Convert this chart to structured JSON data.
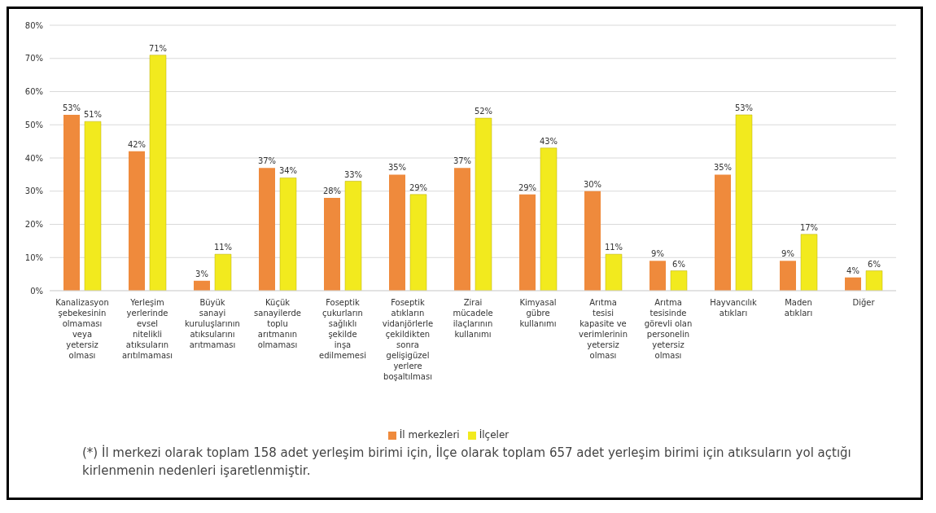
{
  "chart_data": {
    "type": "bar",
    "categories": [
      "Kanalizasyon\nşebekesinin\nolmaması\nveya\nyetersiz\nolması",
      "Yerleşim\nyerlerinde\nevsel\nnitelikli\natıksuların\narıtılmaması",
      "Büyük\nsanayi\nkuruluşlarının\natıksularını\narıtmaması",
      "Küçük\nsanayilerde\ntoplu\narıtmanın\nolmaması",
      "Foseptik\nçukurların\nsağlıklı\nşekilde\ninşa\nedilmemesi",
      "Foseptik\natıkların\nvidanjörlerle\nçekildikten\nsonra\ngelişigüzel\nyerlere\nboşaltılması",
      "Zirai\nmücadele\nilaçlarının\nkullanımı",
      "Kimyasal\ngübre\nkullanımı",
      "Arıtma\ntesisi\nkapasite ve\nverimlerinin\nyetersiz\nolması",
      "Arıtma\ntesisinde\ngörevli olan\npersonelin\nyetersiz\nolması",
      "Hayvancılık\natıkları",
      "Maden\natıkları",
      "Diğer"
    ],
    "series": [
      {
        "name": "İl merkezleri",
        "color": "#ef8a3c",
        "values": [
          53,
          42,
          3,
          37,
          28,
          35,
          37,
          29,
          30,
          9,
          35,
          9,
          4
        ],
        "value_labels": [
          "53%",
          "42%",
          "3%",
          "37%",
          "28%",
          "35%",
          "37%",
          "29%",
          "30%",
          "9%",
          "35%",
          "9%",
          "4%"
        ]
      },
      {
        "name": "İlçeler",
        "color": "#f2ea1e",
        "values": [
          51,
          71,
          11,
          34,
          33,
          29,
          52,
          43,
          11,
          6,
          53,
          17,
          6
        ],
        "value_labels": [
          "51%",
          "71%",
          "11%",
          "34%",
          "33%",
          "29%",
          "52%",
          "43%",
          "11%",
          "6%",
          "53%",
          "17%",
          "6%"
        ]
      }
    ],
    "ylim": [
      0,
      80
    ],
    "yticks": [
      {
        "value": 0,
        "label": "0%"
      },
      {
        "value": 10,
        "label": "10%"
      },
      {
        "value": 20,
        "label": "20%"
      },
      {
        "value": 30,
        "label": "30%"
      },
      {
        "value": 40,
        "label": "40%"
      },
      {
        "value": 50,
        "label": "50%"
      },
      {
        "value": 60,
        "label": "60%"
      },
      {
        "value": 70,
        "label": "70%"
      },
      {
        "value": 80,
        "label": "80%"
      }
    ],
    "grid": "y",
    "legend": "bottom",
    "annotations": [
      "(*) İl merkezi olarak toplam 158 adet yerleşim birimi için, İlçe olarak toplam 657 adet yerleşim birimi için atıksuların yol açtığı kirlenmenin nedenleri işaretlenmiştir."
    ]
  }
}
